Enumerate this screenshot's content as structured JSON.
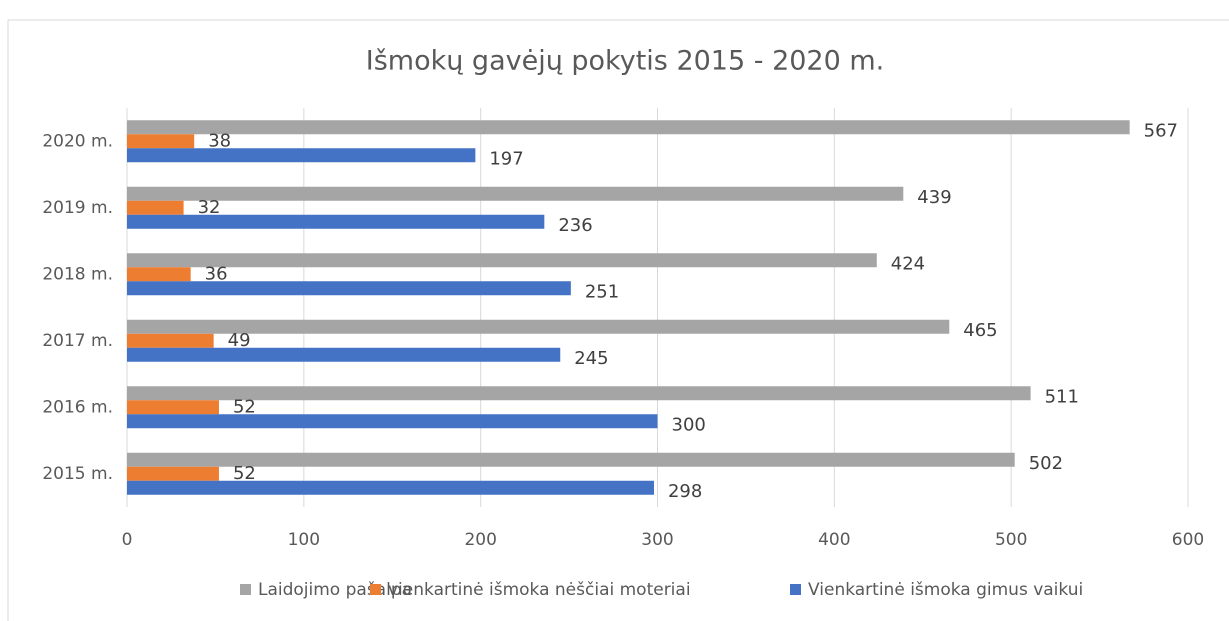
{
  "chart_data": {
    "type": "bar",
    "orientation": "horizontal",
    "title": "Išmokų gavėjų pokytis 2015 - 2020 m.",
    "categories": [
      "2015 m.",
      "2016 m.",
      "2017 m.",
      "2018 m.",
      "2019 m.",
      "2020 m."
    ],
    "series": [
      {
        "name": "Laidojimo pašalpa",
        "color": "#a5a5a5",
        "values": [
          502,
          511,
          465,
          424,
          439,
          567
        ]
      },
      {
        "name": "vienkartinė išmoka nėščiai moteriai",
        "color": "#ed7d31",
        "values": [
          52,
          52,
          49,
          36,
          32,
          38
        ]
      },
      {
        "name": "Vienkartinė išmoka gimus vaikui",
        "color": "#4472c4",
        "values": [
          298,
          300,
          245,
          251,
          236,
          197
        ]
      }
    ],
    "xlim": [
      0,
      600
    ],
    "xticks": [
      0,
      100,
      200,
      300,
      400,
      500,
      600
    ],
    "grid": true,
    "legend": "bottom"
  }
}
